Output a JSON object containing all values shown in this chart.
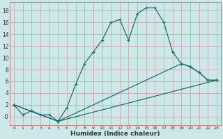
{
  "xlabel": "Humidex (Indice chaleur)",
  "background_color": "#cde8e8",
  "grid_color": "#c8a0a0",
  "line_color": "#1a7070",
  "spine_color": "#cc8888",
  "xlim": [
    -0.5,
    23.5
  ],
  "ylim": [
    -1.5,
    19.5
  ],
  "xticks": [
    0,
    1,
    2,
    3,
    4,
    5,
    6,
    7,
    8,
    9,
    10,
    11,
    12,
    13,
    14,
    15,
    16,
    17,
    18,
    19,
    20,
    21,
    22,
    23
  ],
  "yticks": [
    0,
    2,
    4,
    6,
    8,
    10,
    12,
    14,
    16,
    18
  ],
  "ytick_labels": [
    "-0",
    "2",
    "4",
    "6",
    "8",
    "10",
    "12",
    "14",
    "16",
    "18"
  ],
  "line1_x": [
    0,
    1,
    2,
    3,
    4,
    5,
    6,
    7,
    8,
    9,
    10,
    11,
    12,
    13,
    14,
    15,
    16,
    17,
    18,
    19,
    20,
    21,
    22,
    23
  ],
  "line1_y": [
    2.0,
    0.3,
    1.0,
    0.3,
    0.3,
    -0.8,
    1.5,
    5.5,
    9.0,
    11.0,
    13.0,
    16.0,
    16.5,
    13.0,
    17.5,
    18.5,
    18.5,
    16.0,
    11.0,
    9.0,
    8.5,
    7.5,
    6.2,
    6.2
  ],
  "line2_x": [
    0,
    5,
    19,
    20,
    21,
    22,
    23
  ],
  "line2_y": [
    2.0,
    -0.8,
    9.0,
    8.5,
    7.5,
    6.2,
    6.2
  ],
  "line3_x": [
    0,
    5,
    23
  ],
  "line3_y": [
    2.0,
    -0.8,
    6.2
  ]
}
